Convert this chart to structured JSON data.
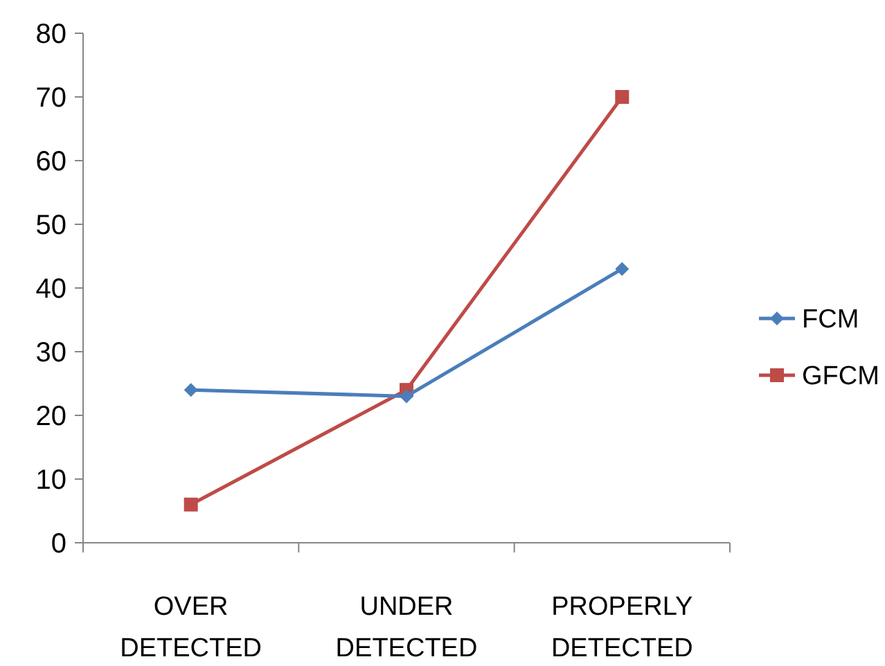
{
  "chart_data": {
    "type": "line",
    "categories": [
      "OVER DETECTED",
      "UNDER DETECTED",
      "PROPERLY DETECTED"
    ],
    "series": [
      {
        "name": "FCM",
        "color": "#4a7ebb",
        "values": [
          24,
          23,
          43
        ],
        "marker": "diamond"
      },
      {
        "name": "GFCM",
        "color": "#be4b48",
        "values": [
          6,
          24,
          70
        ],
        "marker": "square"
      }
    ],
    "ylim": [
      0,
      80
    ],
    "yticks": [
      0,
      10,
      20,
      30,
      40,
      50,
      60,
      70,
      80
    ],
    "grid": false,
    "legend": "right",
    "line_style": "solid"
  }
}
